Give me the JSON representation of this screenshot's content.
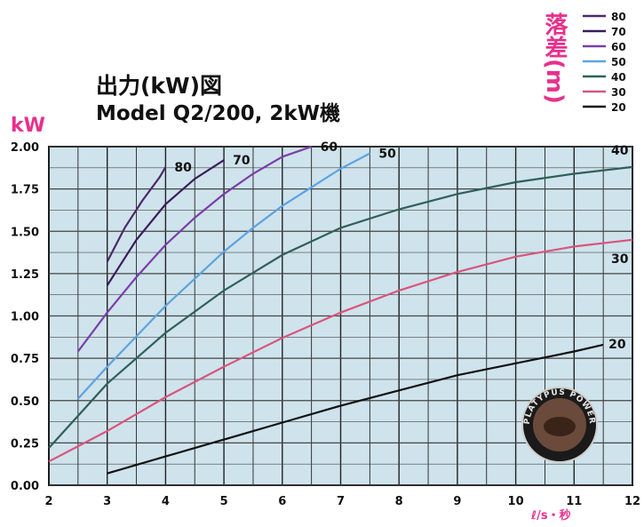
{
  "chart_data": {
    "type": "line",
    "title": "出力(kW)図",
    "subtitle": "Model Q2/200, 2kW機",
    "ylabel": "kW",
    "xlabel": "ℓ/s・秒",
    "xlim": [
      2,
      12
    ],
    "ylim": [
      0,
      2
    ],
    "grid": true,
    "x_ticks": [
      "2",
      "3",
      "4",
      "5",
      "6",
      "7",
      "8",
      "9",
      "10",
      "11",
      "12"
    ],
    "y_ticks": [
      "0.00",
      "0.25",
      "0.50",
      "0.75",
      "1.00",
      "1.25",
      "1.50",
      "1.75",
      "2.00"
    ],
    "legend_title": "落差(m)",
    "legend_position": "top-right",
    "series": [
      {
        "name": "80",
        "color": "#4a2a6a",
        "x": [
          3,
          3.3,
          3.6,
          3.9,
          4.0
        ],
        "y": [
          1.32,
          1.52,
          1.68,
          1.82,
          1.88
        ]
      },
      {
        "name": "70",
        "color": "#3a1c5a",
        "x": [
          3,
          3.5,
          4,
          4.5,
          5.0
        ],
        "y": [
          1.18,
          1.45,
          1.66,
          1.81,
          1.92
        ]
      },
      {
        "name": "60",
        "color": "#7a3ea8",
        "x": [
          2.5,
          3,
          3.5,
          4,
          4.5,
          5,
          5.5,
          6,
          6.5
        ],
        "y": [
          0.79,
          1.02,
          1.23,
          1.42,
          1.58,
          1.72,
          1.84,
          1.94,
          2.0
        ]
      },
      {
        "name": "50",
        "color": "#5ba3e0",
        "x": [
          2.5,
          3,
          3.5,
          4,
          4.5,
          5,
          5.5,
          6,
          6.5,
          7,
          7.5
        ],
        "y": [
          0.51,
          0.7,
          0.88,
          1.06,
          1.22,
          1.38,
          1.52,
          1.65,
          1.76,
          1.87,
          1.96
        ]
      },
      {
        "name": "40",
        "color": "#2f5f5a",
        "x": [
          2,
          3,
          4,
          5,
          6,
          7,
          8,
          9,
          10,
          11,
          12
        ],
        "y": [
          0.22,
          0.6,
          0.9,
          1.15,
          1.36,
          1.52,
          1.63,
          1.72,
          1.79,
          1.84,
          1.88
        ]
      },
      {
        "name": "30",
        "color": "#d9557c",
        "x": [
          2,
          3,
          4,
          5,
          6,
          7,
          8,
          9,
          10,
          11,
          12
        ],
        "y": [
          0.14,
          0.32,
          0.52,
          0.7,
          0.87,
          1.02,
          1.15,
          1.26,
          1.35,
          1.41,
          1.45
        ]
      },
      {
        "name": "20",
        "color": "#111111",
        "x": [
          3,
          4,
          5,
          6,
          7,
          8,
          9,
          10,
          11,
          11.5
        ],
        "y": [
          0.07,
          0.17,
          0.27,
          0.37,
          0.47,
          0.56,
          0.65,
          0.72,
          0.79,
          0.83
        ]
      }
    ]
  },
  "badge": {
    "text": "PLATYPUS POWER"
  }
}
